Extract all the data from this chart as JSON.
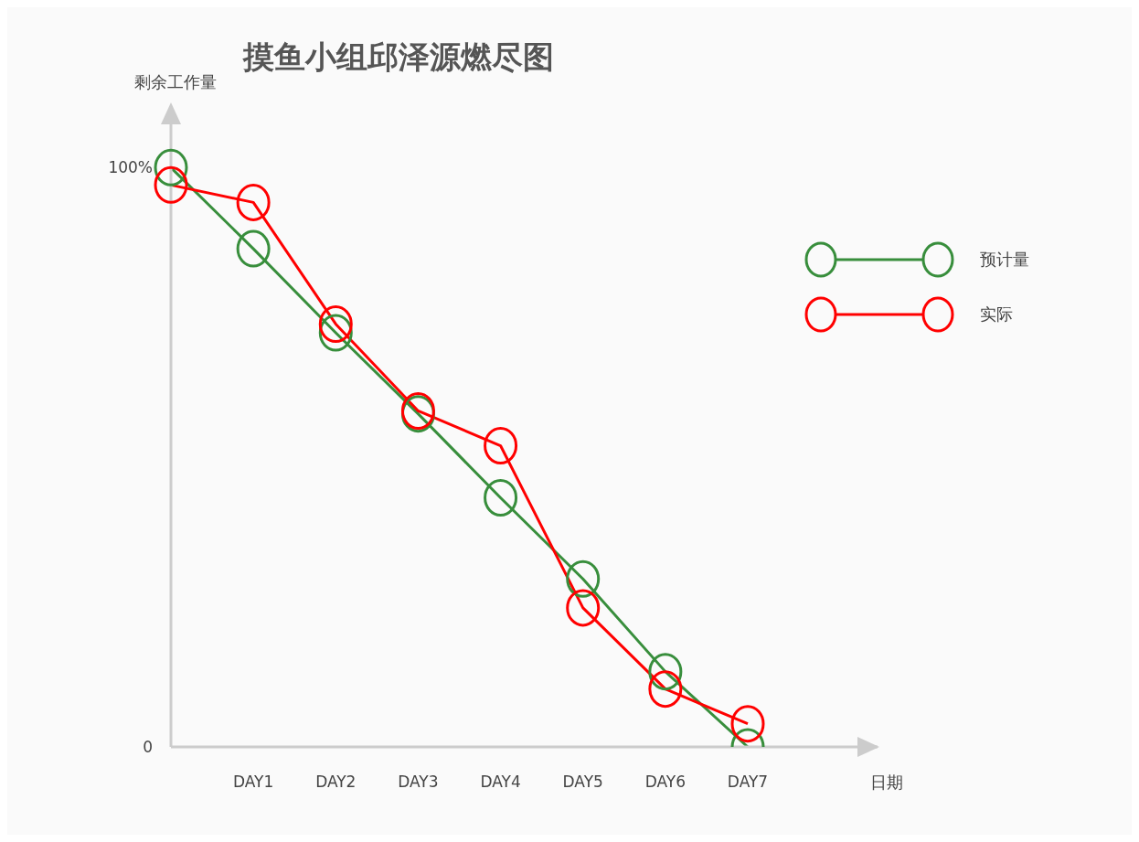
{
  "chart_data": {
    "type": "line",
    "title": "摸鱼小组邱泽源燃尽图",
    "xlabel": "日期",
    "ylabel": "剩余工作量",
    "categories": [
      null,
      "DAY1",
      "DAY2",
      "DAY3",
      "DAY4",
      "DAY5",
      "DAY6",
      "DAY7"
    ],
    "series": [
      {
        "name": "预计量",
        "color": "#388e3c",
        "values": [
          100,
          86,
          71.5,
          57.5,
          43,
          29,
          13,
          0
        ]
      },
      {
        "name": "实际",
        "color": "#ff0000",
        "values": [
          97,
          94,
          73,
          58,
          52,
          24,
          10,
          4
        ]
      }
    ],
    "ylim": [
      0,
      110
    ],
    "yticks": [
      {
        "value": 0,
        "label": "0"
      },
      {
        "value": 100,
        "label": "100%"
      }
    ],
    "legend": "top right",
    "marker": "circle",
    "line_style": "solid"
  }
}
